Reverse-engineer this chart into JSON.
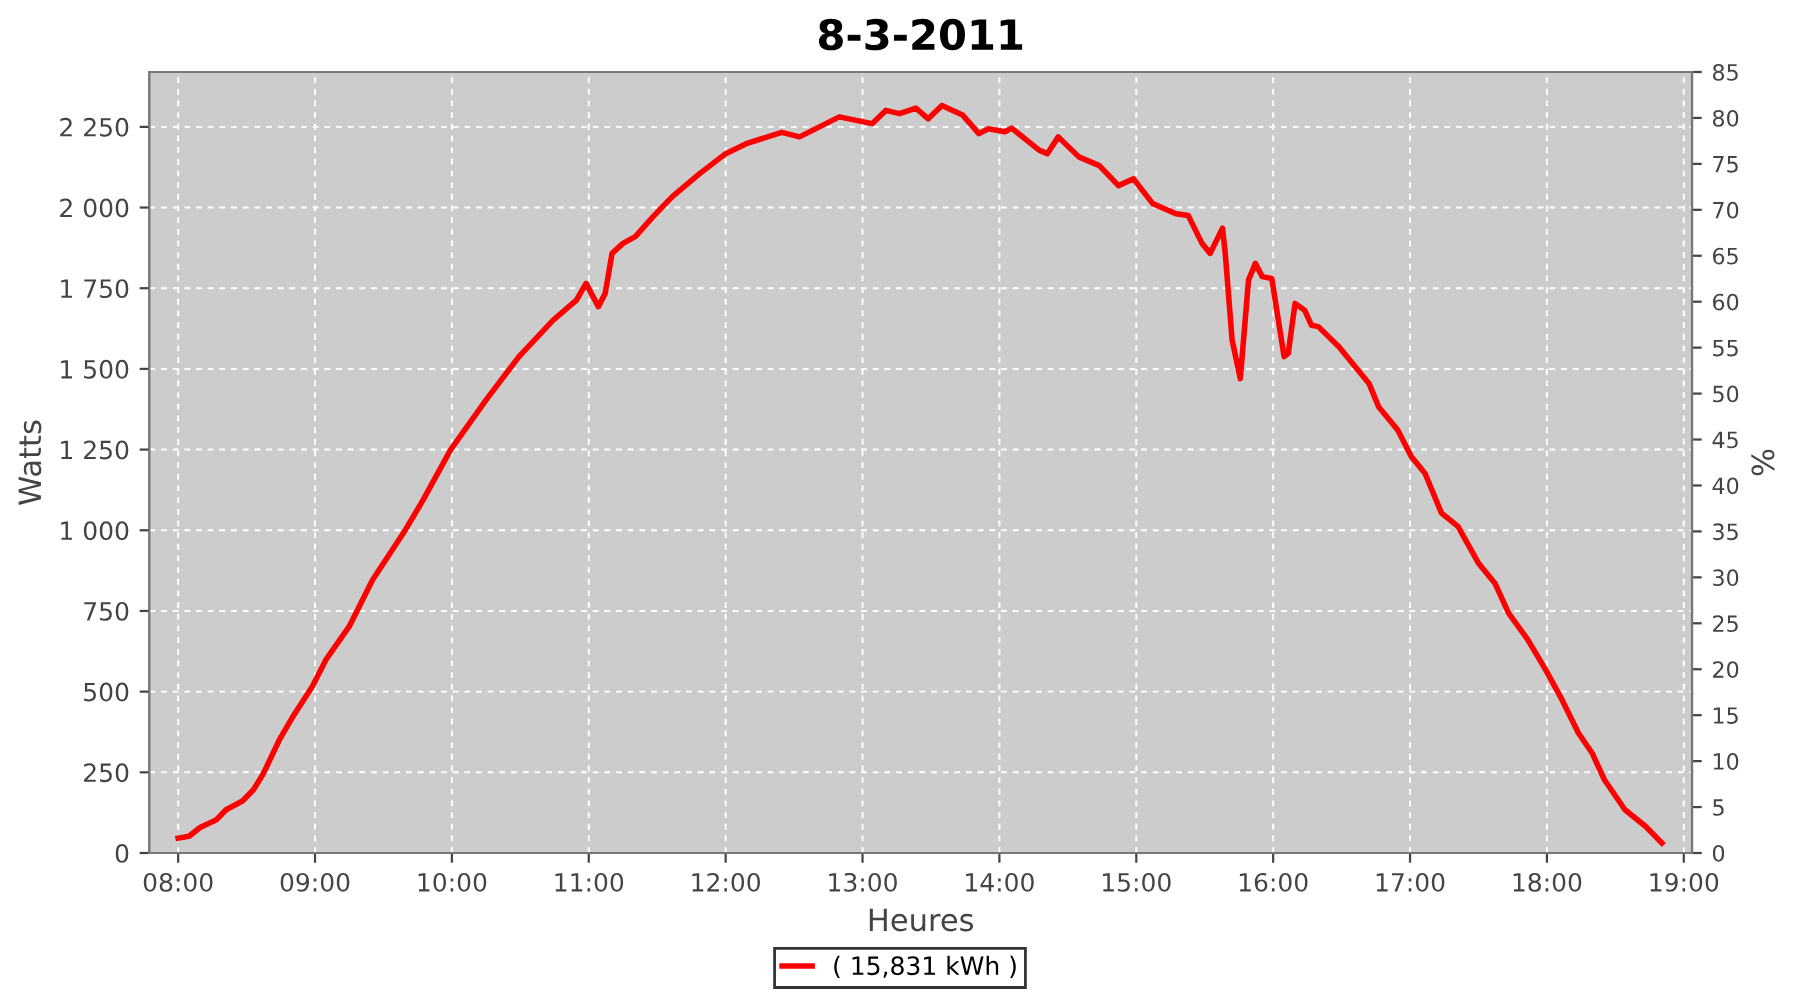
{
  "chart_data": {
    "type": "line",
    "title": "8-3-2011",
    "xlabel": "Heures",
    "ylabel": "Watts",
    "y2label": "%",
    "xlim": [
      7.79,
      19.06
    ],
    "xticks": [
      {
        "value": 8,
        "label": "08:00"
      },
      {
        "value": 9,
        "label": "09:00"
      },
      {
        "value": 10,
        "label": "10:00"
      },
      {
        "value": 11,
        "label": "11:00"
      },
      {
        "value": 12,
        "label": "12:00"
      },
      {
        "value": 13,
        "label": "13:00"
      },
      {
        "value": 14,
        "label": "14:00"
      },
      {
        "value": 15,
        "label": "15:00"
      },
      {
        "value": 16,
        "label": "16:00"
      },
      {
        "value": 17,
        "label": "17:00"
      },
      {
        "value": 18,
        "label": "18:00"
      },
      {
        "value": 19,
        "label": "19:00"
      }
    ],
    "ylim": [
      0,
      2420
    ],
    "yticks": [
      0,
      250,
      500,
      750,
      {
        "value": 1000,
        "label": "1 000"
      },
      {
        "value": 1250,
        "label": "1 250"
      },
      {
        "value": 1500,
        "label": "1 500"
      },
      {
        "value": 1750,
        "label": "1 750"
      },
      {
        "value": 2000,
        "label": "2 000"
      },
      {
        "value": 2250,
        "label": "2 250"
      }
    ],
    "y2lim": [
      0,
      85
    ],
    "y2ticks": [
      0,
      5,
      10,
      15,
      20,
      25,
      30,
      35,
      40,
      45,
      50,
      55,
      60,
      65,
      70,
      75,
      80,
      85
    ],
    "grid": true,
    "legend": "bottom",
    "marker": "none",
    "line_style": "solid",
    "series": [
      {
        "name": "( 15,831 kWh )",
        "color": "#ff0000",
        "x": [
          8.0,
          8.08,
          8.16,
          8.28,
          8.35,
          8.47,
          8.55,
          8.62,
          8.74,
          8.84,
          8.98,
          9.08,
          9.25,
          9.42,
          9.66,
          9.79,
          9.99,
          10.25,
          10.49,
          10.74,
          10.91,
          10.98,
          11.07,
          11.12,
          11.17,
          11.25,
          11.34,
          11.47,
          11.61,
          11.81,
          12.0,
          12.15,
          12.41,
          12.54,
          12.83,
          13.07,
          13.17,
          13.27,
          13.39,
          13.48,
          13.58,
          13.73,
          13.85,
          13.92,
          14.04,
          14.09,
          14.29,
          14.35,
          14.43,
          14.58,
          14.73,
          14.87,
          14.98,
          15.12,
          15.29,
          15.38,
          15.48,
          15.54,
          15.63,
          15.65,
          15.7,
          15.76,
          15.82,
          15.87,
          15.92,
          15.99,
          16.08,
          16.11,
          16.16,
          16.23,
          16.28,
          16.33,
          16.48,
          16.7,
          16.77,
          16.91,
          17.01,
          17.11,
          17.23,
          17.35,
          17.5,
          17.62,
          17.72,
          17.86,
          17.99,
          18.11,
          18.23,
          18.33,
          18.42,
          18.57,
          18.72,
          18.84
        ],
        "values": [
          46,
          52,
          79,
          103,
          134,
          161,
          196,
          244,
          351,
          424,
          516,
          599,
          702,
          846,
          1001,
          1094,
          1249,
          1404,
          1538,
          1651,
          1713,
          1765,
          1693,
          1734,
          1858,
          1889,
          1910,
          1972,
          2034,
          2105,
          2167,
          2198,
          2233,
          2219,
          2281,
          2260,
          2301,
          2291,
          2308,
          2275,
          2316,
          2287,
          2229,
          2244,
          2235,
          2246,
          2178,
          2167,
          2219,
          2157,
          2130,
          2068,
          2089,
          2012,
          1981,
          1975,
          1889,
          1858,
          1936,
          1858,
          1590,
          1470,
          1775,
          1827,
          1786,
          1780,
          1538,
          1548,
          1703,
          1682,
          1635,
          1631,
          1569,
          1455,
          1383,
          1311,
          1228,
          1176,
          1053,
          1012,
          898,
          836,
          743,
          661,
          568,
          475,
          372,
          310,
          227,
          134,
          83,
          31
        ]
      }
    ]
  }
}
